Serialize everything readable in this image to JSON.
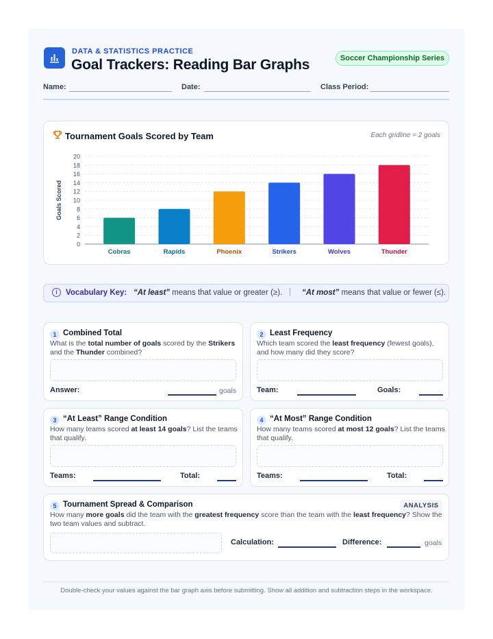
{
  "header": {
    "kicker": "DATA & STATISTICS PRACTICE",
    "title": "Goal Trackers: Reading Bar Graphs",
    "badge": "Soccer Championship Series",
    "fields": [
      "Name:",
      "Date:",
      "Class Period:"
    ]
  },
  "chart_card": {
    "note": "Each gridline = 2 goals"
  },
  "chart_data": {
    "type": "bar",
    "title": "Tournament Goals Scored by Team",
    "xlabel": "",
    "ylabel": "Goals Scored",
    "ylim": [
      0,
      20
    ],
    "yticks": [
      "0",
      "2",
      "4",
      "6",
      "8",
      "10",
      "12",
      "14",
      "16",
      "18",
      "20"
    ],
    "categories": [
      "Cobras",
      "Rapids",
      "Phoenix",
      "Strikers",
      "Wolves",
      "Thunder"
    ],
    "values": [
      6,
      8,
      12,
      14,
      16,
      18
    ],
    "colors": [
      "#129587",
      "#0a7fc9",
      "#f59e0b",
      "#2563eb",
      "#4f46e5",
      "#e11d48"
    ],
    "label_colors": [
      "#0f766e",
      "#0369a1",
      "#b45309",
      "#1d4ed8",
      "#4338ca",
      "#be123c"
    ],
    "grid": true
  },
  "vocab": {
    "label": "Vocabulary Key:",
    "at_least_term": "“At least”",
    "at_least_def": " means that value or greater (≥).",
    "separator": "|",
    "at_most_term": "“At most”",
    "at_most_def": " means that value or fewer (≤)."
  },
  "questions": {
    "q1": {
      "num": "1",
      "title": "Combined Total",
      "text_parts": [
        "What is the ",
        "total number of goals",
        " scored by the ",
        "Strikers",
        "",
        "and the ",
        "Thunder",
        " combined?"
      ],
      "answer_label": "Answer:",
      "unit": "goals"
    },
    "q2": {
      "num": "2",
      "title": "Least Frequency",
      "text_parts": [
        "Which team scored the ",
        "least frequency",
        " (fewest goals),",
        "and how many did they score?"
      ],
      "team_label": "Team:",
      "goals_label": "Goals:"
    },
    "q3": {
      "num": "3",
      "title": "“At Least” Range Condition",
      "text_parts": [
        "How many teams scored ",
        "at least 14 goals",
        "? List the teams",
        "that qualify."
      ],
      "teams_label": "Teams:",
      "total_label": "Total:"
    },
    "q4": {
      "num": "4",
      "title": "“At Most” Range Condition",
      "text_parts": [
        "How many teams scored ",
        "at most 12 goals",
        "? List the teams",
        "that qualify."
      ],
      "teams_label": "Teams:",
      "total_label": "Total:"
    },
    "q5": {
      "num": "5",
      "title": "Tournament Spread & Comparison",
      "tag": "ANALYSIS",
      "text_parts": [
        "How many ",
        "more goals",
        " did the team with the ",
        "greatest frequency",
        " score than the team with the ",
        "least frequency",
        "? Show the",
        "two team values and subtract."
      ],
      "calc_label": "Calculation:",
      "diff_label": "Difference:",
      "unit": "goals"
    }
  },
  "footer": "Double-check your values against the bar graph axis before submitting. Show all addition and subtraction steps in the workspace."
}
